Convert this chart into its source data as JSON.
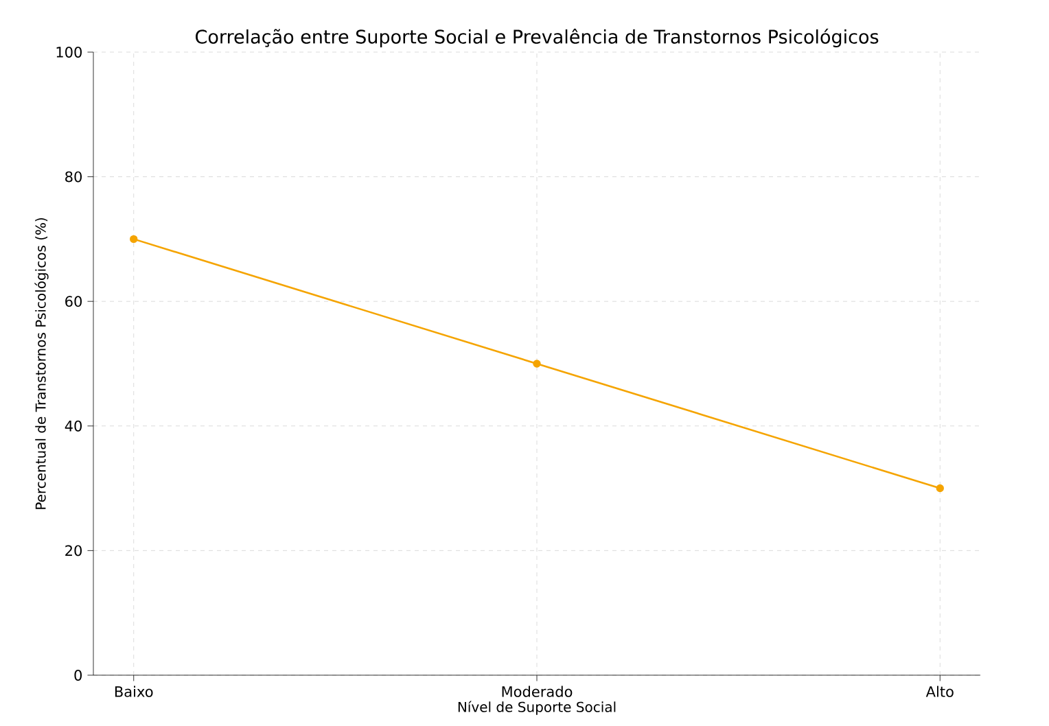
{
  "chart_data": {
    "type": "line",
    "title": "Correlação entre Suporte Social e Prevalência de Transtornos Psicológicos",
    "xlabel": "Nível de Suporte Social",
    "ylabel": "Percentual de Transtornos Psicológicos (%)",
    "categories": [
      "Baixo",
      "Moderado",
      "Alto"
    ],
    "values": [
      70,
      50,
      30
    ],
    "color": "#f5a400",
    "ylim": [
      0,
      100
    ],
    "yticks": [
      0,
      20,
      40,
      60,
      80,
      100
    ],
    "grid": true,
    "marker": "circle",
    "line_style": "solid"
  }
}
